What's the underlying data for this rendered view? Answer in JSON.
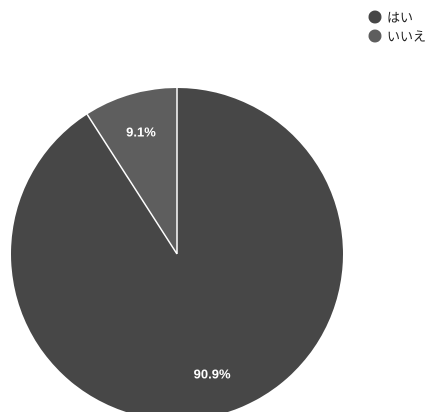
{
  "chart_data": {
    "type": "pie",
    "title": "",
    "slices": [
      {
        "label": "はい",
        "value": 90.9,
        "display": "90.9%",
        "color": "#474747"
      },
      {
        "label": "いいえ",
        "value": 9.1,
        "display": "9.1%",
        "color": "#5e5e5e"
      }
    ],
    "legend_position": "top-right",
    "slice_border_color": "#ffffff"
  }
}
